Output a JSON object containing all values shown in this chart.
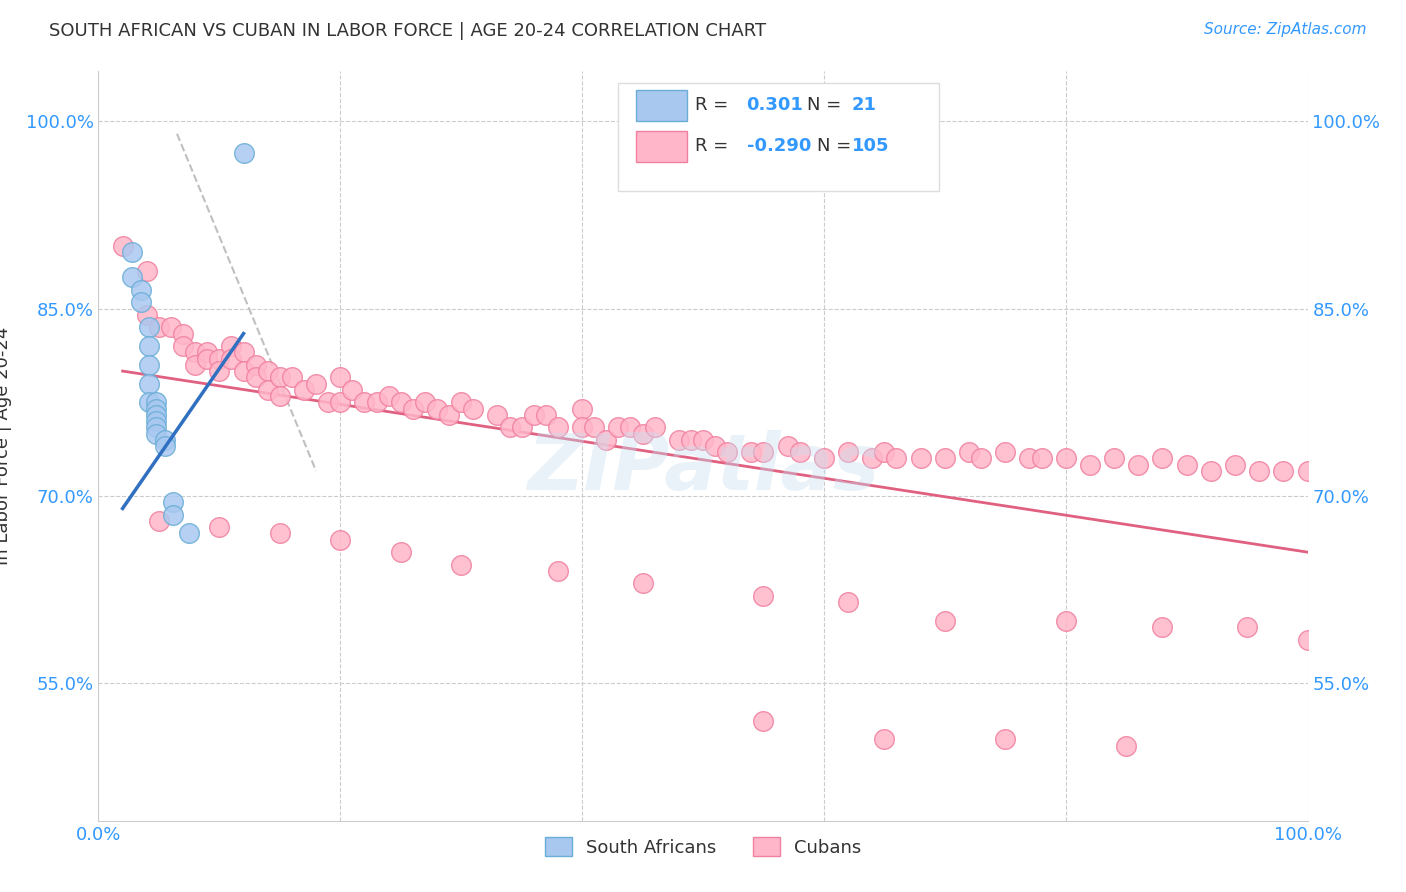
{
  "title": "SOUTH AFRICAN VS CUBAN IN LABOR FORCE | AGE 20-24 CORRELATION CHART",
  "source": "Source: ZipAtlas.com",
  "ylabel": "In Labor Force | Age 20-24",
  "xlim": [
    0.0,
    1.0
  ],
  "ylim": [
    0.44,
    1.04
  ],
  "ytick_positions": [
    0.55,
    0.7,
    0.85,
    1.0
  ],
  "ytick_labels": [
    "55.0%",
    "70.0%",
    "85.0%",
    "100.0%"
  ],
  "background_color": "#ffffff",
  "grid_color": "#cccccc",
  "watermark": "ZIPatlas",
  "sa_color": "#a8c8f0",
  "sa_edge_color": "#6aaed6",
  "cuba_color": "#ffb6c8",
  "cuba_edge_color": "#f080a0",
  "sa_line_color": "#3070c0",
  "cuba_line_color": "#e06080",
  "dashed_line_color": "#c0c0c0",
  "legend_sa_R": "0.301",
  "legend_sa_N": "21",
  "legend_cuba_R": "-0.290",
  "legend_cuba_N": "105",
  "title_color": "#333333",
  "axis_label_color": "#333333",
  "tick_label_color": "#3399ff",
  "legend_text_color_dark": "#333333",
  "sa_points_x": [
    0.028,
    0.028,
    0.035,
    0.035,
    0.042,
    0.042,
    0.042,
    0.042,
    0.042,
    0.048,
    0.048,
    0.048,
    0.048,
    0.048,
    0.048,
    0.055,
    0.055,
    0.062,
    0.062,
    0.075,
    0.12
  ],
  "sa_points_y": [
    0.895,
    0.875,
    0.865,
    0.855,
    0.835,
    0.82,
    0.805,
    0.79,
    0.775,
    0.775,
    0.77,
    0.765,
    0.76,
    0.755,
    0.75,
    0.745,
    0.74,
    0.695,
    0.685,
    0.67,
    0.975
  ],
  "cuba_points_x": [
    0.02,
    0.04,
    0.04,
    0.05,
    0.06,
    0.07,
    0.07,
    0.08,
    0.08,
    0.09,
    0.09,
    0.1,
    0.1,
    0.11,
    0.11,
    0.12,
    0.12,
    0.13,
    0.13,
    0.14,
    0.14,
    0.15,
    0.15,
    0.16,
    0.17,
    0.18,
    0.19,
    0.2,
    0.2,
    0.21,
    0.22,
    0.23,
    0.24,
    0.25,
    0.26,
    0.27,
    0.28,
    0.29,
    0.3,
    0.31,
    0.33,
    0.34,
    0.35,
    0.36,
    0.37,
    0.38,
    0.4,
    0.4,
    0.41,
    0.42,
    0.43,
    0.44,
    0.45,
    0.46,
    0.48,
    0.49,
    0.5,
    0.51,
    0.52,
    0.54,
    0.55,
    0.57,
    0.58,
    0.6,
    0.62,
    0.64,
    0.65,
    0.66,
    0.68,
    0.7,
    0.72,
    0.73,
    0.75,
    0.77,
    0.78,
    0.8,
    0.82,
    0.84,
    0.86,
    0.88,
    0.9,
    0.92,
    0.94,
    0.96,
    0.98,
    1.0,
    0.05,
    0.1,
    0.15,
    0.2,
    0.25,
    0.3,
    0.38,
    0.45,
    0.55,
    0.62,
    0.7,
    0.8,
    0.88,
    0.95,
    1.0,
    0.55,
    0.65,
    0.75,
    0.85
  ],
  "cuba_points_y": [
    0.9,
    0.88,
    0.845,
    0.835,
    0.835,
    0.83,
    0.82,
    0.815,
    0.805,
    0.815,
    0.81,
    0.81,
    0.8,
    0.82,
    0.81,
    0.815,
    0.8,
    0.805,
    0.795,
    0.8,
    0.785,
    0.795,
    0.78,
    0.795,
    0.785,
    0.79,
    0.775,
    0.795,
    0.775,
    0.785,
    0.775,
    0.775,
    0.78,
    0.775,
    0.77,
    0.775,
    0.77,
    0.765,
    0.775,
    0.77,
    0.765,
    0.755,
    0.755,
    0.765,
    0.765,
    0.755,
    0.77,
    0.755,
    0.755,
    0.745,
    0.755,
    0.755,
    0.75,
    0.755,
    0.745,
    0.745,
    0.745,
    0.74,
    0.735,
    0.735,
    0.735,
    0.74,
    0.735,
    0.73,
    0.735,
    0.73,
    0.735,
    0.73,
    0.73,
    0.73,
    0.735,
    0.73,
    0.735,
    0.73,
    0.73,
    0.73,
    0.725,
    0.73,
    0.725,
    0.73,
    0.725,
    0.72,
    0.725,
    0.72,
    0.72,
    0.72,
    0.68,
    0.675,
    0.67,
    0.665,
    0.655,
    0.645,
    0.64,
    0.63,
    0.62,
    0.615,
    0.6,
    0.6,
    0.595,
    0.595,
    0.585,
    0.52,
    0.505,
    0.505,
    0.5
  ],
  "sa_trendline_x": [
    0.02,
    0.12
  ],
  "sa_trendline_y": [
    0.69,
    0.83
  ],
  "cuba_trendline_x": [
    0.02,
    1.0
  ],
  "cuba_trendline_y": [
    0.8,
    0.655
  ],
  "dashed_trendline_x": [
    0.065,
    0.18
  ],
  "dashed_trendline_y": [
    0.99,
    0.72
  ]
}
